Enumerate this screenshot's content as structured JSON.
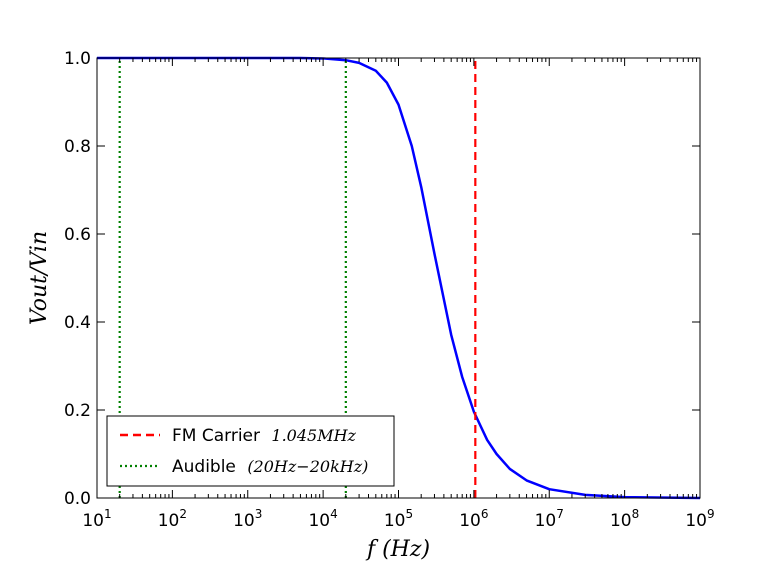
{
  "chart_data": {
    "type": "line",
    "xscale": "log",
    "xlim": [
      10,
      1000000000
    ],
    "ylim": [
      0.0,
      1.0
    ],
    "xlabel": "f (Hz)",
    "ylabel": "Vout/Vin",
    "grid": false,
    "legend_position": "lower-left",
    "x_ticks": [
      {
        "value": 10,
        "base": "10",
        "exp": "1"
      },
      {
        "value": 100,
        "base": "10",
        "exp": "2"
      },
      {
        "value": 1000,
        "base": "10",
        "exp": "3"
      },
      {
        "value": 10000,
        "base": "10",
        "exp": "4"
      },
      {
        "value": 100000,
        "base": "10",
        "exp": "5"
      },
      {
        "value": 1000000,
        "base": "10",
        "exp": "6"
      },
      {
        "value": 10000000,
        "base": "10",
        "exp": "7"
      },
      {
        "value": 100000000,
        "base": "10",
        "exp": "8"
      },
      {
        "value": 1000000000,
        "base": "10",
        "exp": "9"
      }
    ],
    "y_ticks": [
      "0.0",
      "0.2",
      "0.4",
      "0.6",
      "0.8",
      "1.0"
    ],
    "series": [
      {
        "color": "#0000ff",
        "style": "solid",
        "x": [
          10,
          100,
          1000,
          5000,
          10000,
          20000,
          30000,
          50000,
          70000,
          100000,
          150000,
          200000,
          300000,
          500000,
          700000,
          1000000,
          1500000,
          2000000,
          3000000,
          5000000,
          10000000,
          30000000,
          100000000,
          1000000000
        ],
        "y": [
          1.0,
          1.0,
          1.0,
          1.0,
          0.999,
          0.995,
          0.989,
          0.971,
          0.944,
          0.894,
          0.8,
          0.707,
          0.555,
          0.371,
          0.275,
          0.196,
          0.132,
          0.1,
          0.066,
          0.04,
          0.02,
          0.007,
          0.002,
          0.0
        ]
      },
      {
        "name": "FM Carrier",
        "name_math": "1.045MHz",
        "color": "#ff0000",
        "style": "dashed",
        "x": [
          1045000,
          1045000
        ],
        "y": [
          0.0,
          1.0
        ]
      },
      {
        "name": "Audible",
        "name_math": "(20Hz−20kHz)",
        "color": "#008000",
        "style": "dotted",
        "x": [
          20,
          20
        ],
        "y": [
          0.0,
          1.0
        ]
      },
      {
        "color": "#008000",
        "style": "dotted",
        "x": [
          20000,
          20000
        ],
        "y": [
          0.0,
          1.0
        ]
      }
    ]
  }
}
